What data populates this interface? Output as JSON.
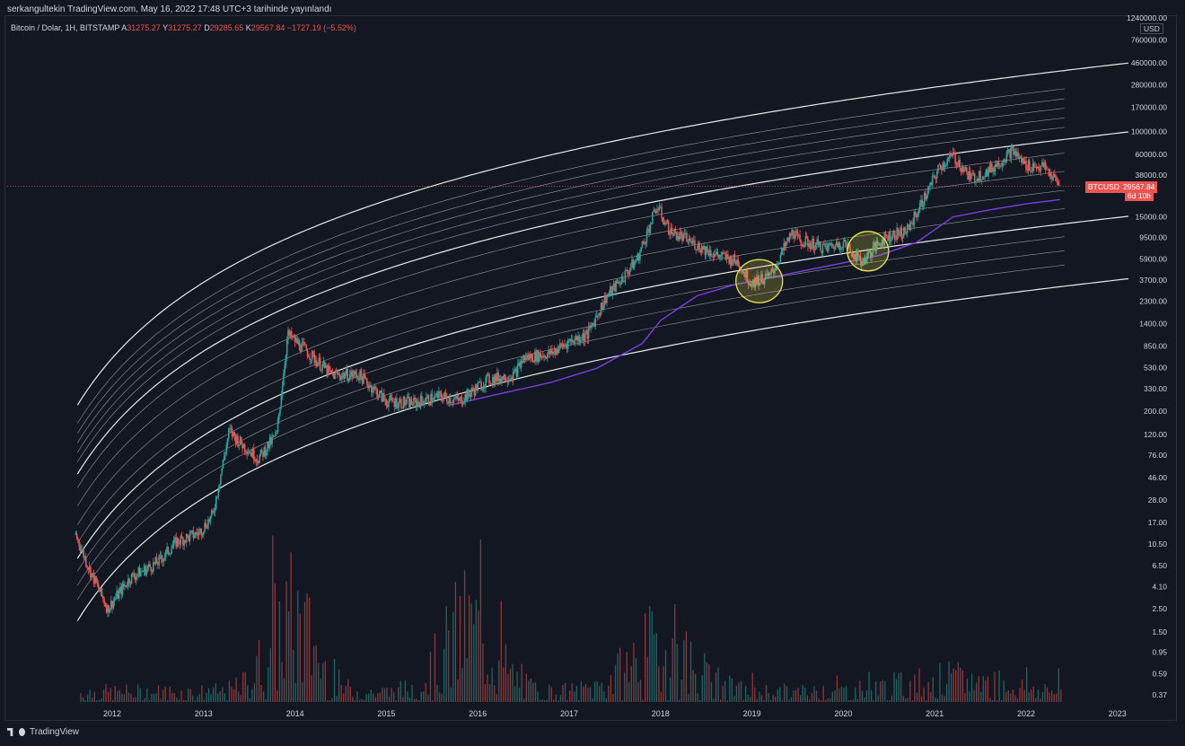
{
  "header": {
    "credit": "serkangultekin TradingView.com, May 16, 2022 17:48 UTC+3 tarihinde yayınlandı",
    "symbol": "Bitcoin / Dolar, 1H, BITSTAMP",
    "ohlc": [
      {
        "label": "A",
        "value": "31275.27"
      },
      {
        "label": "Y",
        "value": "31275.27"
      },
      {
        "label": "D",
        "value": "29285.65"
      },
      {
        "label": "K",
        "value": "29567.84"
      }
    ],
    "change": "−1727.19 (−5.52%)"
  },
  "price_axis": {
    "currency": "USD",
    "labels": [
      "1240000.00",
      "760000.00",
      "460000.00",
      "280000.00",
      "170000.00",
      "100000.00",
      "60000.00",
      "38000.00",
      "15000.00",
      "9500.00",
      "5900.00",
      "3700.00",
      "2300.00",
      "1400.00",
      "850.00",
      "530.00",
      "330.00",
      "200.00",
      "120.00",
      "76.00",
      "46.00",
      "28.00",
      "17.00",
      "10.50",
      "6.50",
      "4.10",
      "2.50",
      "1.50",
      "0.95",
      "0.59",
      "0.37"
    ]
  },
  "last_price": {
    "symbol": "BTCUSD",
    "value": "29567.84",
    "countdown": "6d 10h"
  },
  "footer": {
    "brand": "TradingView"
  },
  "colors": {
    "background": "#131722",
    "up": "#26a69a",
    "down": "#ef5350",
    "band": "#ffffff",
    "ma": "#7b3fe4",
    "highlight": "#e6e24a"
  },
  "chart_data": {
    "type": "candlestick",
    "y_scale": "log",
    "x_ticks": [
      "2012",
      "2013",
      "2014",
      "2015",
      "2016",
      "2017",
      "2018",
      "2019",
      "2020",
      "2021",
      "2022",
      "2023"
    ],
    "price_series": {
      "x": [
        2011.6,
        2011.75,
        2011.95,
        2012.2,
        2012.5,
        2012.7,
        2012.95,
        2013.1,
        2013.28,
        2013.4,
        2013.6,
        2013.8,
        2013.92,
        2014.1,
        2014.4,
        2014.7,
        2015.0,
        2015.3,
        2015.6,
        2015.8,
        2016.1,
        2016.4,
        2016.5,
        2016.8,
        2017.0,
        2017.2,
        2017.4,
        2017.6,
        2017.75,
        2017.96,
        2018.1,
        2018.4,
        2018.6,
        2018.85,
        2018.98,
        2019.2,
        2019.45,
        2019.5,
        2019.8,
        2020.0,
        2020.2,
        2020.45,
        2020.7,
        2020.95,
        2021.05,
        2021.2,
        2021.4,
        2021.6,
        2021.85,
        2022.0,
        2022.2,
        2022.37
      ],
      "y": [
        13,
        6,
        2.5,
        5,
        7,
        11,
        13.5,
        20,
        130,
        100,
        70,
        120,
        1100,
        800,
        450,
        450,
        250,
        240,
        280,
        250,
        400,
        450,
        650,
        720,
        950,
        1100,
        2500,
        4000,
        6000,
        19000,
        11000,
        8000,
        6500,
        5500,
        3500,
        4000,
        11000,
        9000,
        7500,
        8500,
        5500,
        9500,
        11000,
        29000,
        45000,
        58000,
        35000,
        42000,
        65000,
        47000,
        45000,
        29567.84
      ]
    },
    "volume": {
      "max_reference": 1.0
    },
    "overlays": [
      "log regression bands",
      "long-term moving average",
      "2 highlighted accumulation zones (late 2018–early 2019, early 2020)"
    ]
  }
}
